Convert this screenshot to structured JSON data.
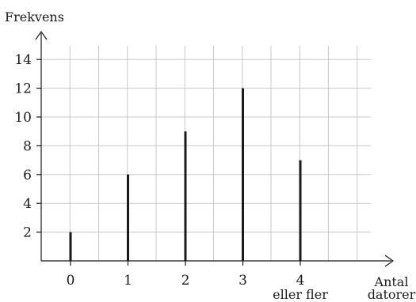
{
  "chart_data": {
    "type": "bar",
    "categories": [
      "0",
      "1",
      "2",
      "3",
      "4"
    ],
    "category_sublabels": [
      "",
      "",
      "",
      "",
      "eller fler"
    ],
    "values": [
      2,
      6,
      9,
      12,
      7
    ],
    "xlabel": [
      "Antal",
      "datorer"
    ],
    "ylabel": "Frekvens",
    "y_ticks": [
      2,
      4,
      6,
      8,
      10,
      12,
      14
    ],
    "ylim": [
      0,
      15.2
    ],
    "grid": true,
    "bar_style": "thin vertical lines",
    "bar_color": "#1a1a1a",
    "grid_color": "#c8c8c8"
  }
}
